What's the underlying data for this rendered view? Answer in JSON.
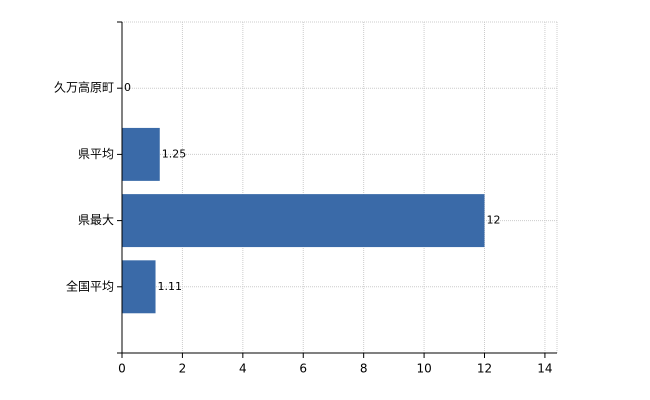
{
  "chart_data": {
    "type": "bar",
    "orientation": "horizontal",
    "categories": [
      "久万高原町",
      "県平均",
      "県最大",
      "全国平均"
    ],
    "values": [
      0,
      1.25,
      12,
      1.11
    ],
    "color": "#3a6aa8",
    "xlim": [
      0,
      14.4
    ],
    "xticks": [
      0,
      2,
      4,
      6,
      8,
      10,
      12,
      14
    ],
    "grid": true,
    "data_labels": true
  }
}
